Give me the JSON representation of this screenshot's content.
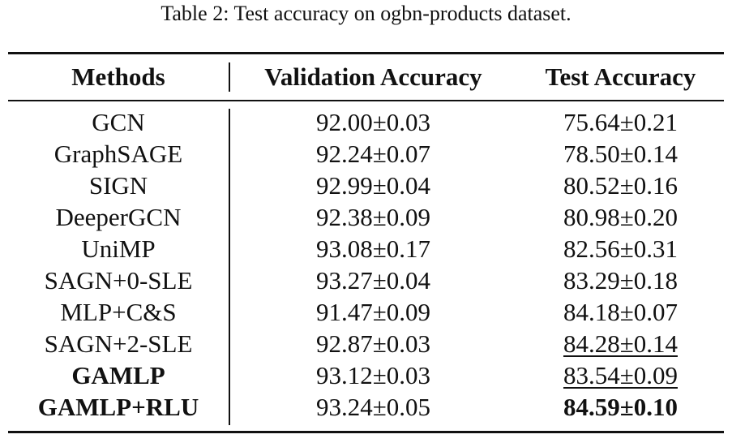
{
  "caption": "Table 2: Test accuracy on ogbn-products dataset.",
  "table": {
    "header": [
      "Methods",
      "Validation Accuracy",
      "Test Accuracy"
    ],
    "rows": [
      [
        "GCN",
        "92.00±0.03",
        "75.64±0.21"
      ],
      [
        "GraphSAGE",
        "92.24±0.07",
        "78.50±0.14"
      ],
      [
        "SIGN",
        "92.99±0.04",
        "80.52±0.16"
      ],
      [
        "DeeperGCN",
        "92.38±0.09",
        "80.98±0.20"
      ],
      [
        "UniMP",
        "93.08±0.17",
        "82.56±0.31"
      ],
      [
        "SAGN+0-SLE",
        "93.27±0.04",
        "83.29±0.18"
      ],
      [
        "MLP+C&S",
        "91.47±0.09",
        "84.18±0.07"
      ],
      [
        "SAGN+2-SLE",
        "92.87±0.03",
        "84.28±0.14"
      ],
      [
        "GAMLP",
        "93.12±0.03",
        "83.54±0.09"
      ],
      [
        "GAMLP+RLU",
        "93.24±0.05",
        "84.59±0.10"
      ]
    ]
  }
}
